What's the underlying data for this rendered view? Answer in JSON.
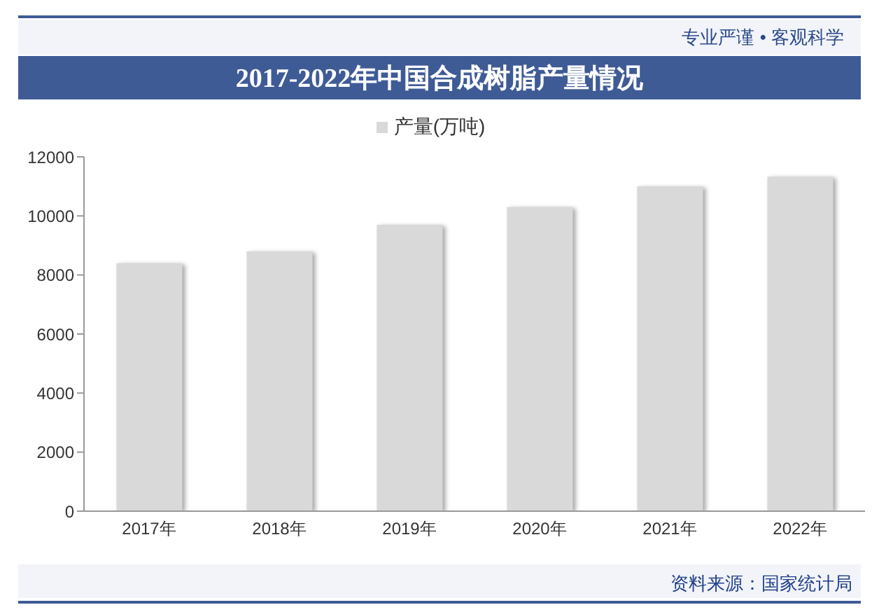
{
  "chart_data": {
    "type": "bar",
    "title": "2017-2022年中国合成树脂产量情况",
    "categories": [
      "2017年",
      "2018年",
      "2019年",
      "2020年",
      "2021年",
      "2022年"
    ],
    "series": [
      {
        "name": "产量(万吨)",
        "color": "#d9d9d9",
        "values": [
          8400,
          8800,
          9700,
          10300,
          11000,
          11330
        ]
      }
    ],
    "ylim": [
      0,
      12000
    ],
    "yticks": [
      0,
      2000,
      4000,
      6000,
      8000,
      10000,
      12000
    ],
    "legend": "top",
    "annotations": [
      "专业严谨 • 客观科学",
      "资料来源：国家统计局"
    ]
  }
}
